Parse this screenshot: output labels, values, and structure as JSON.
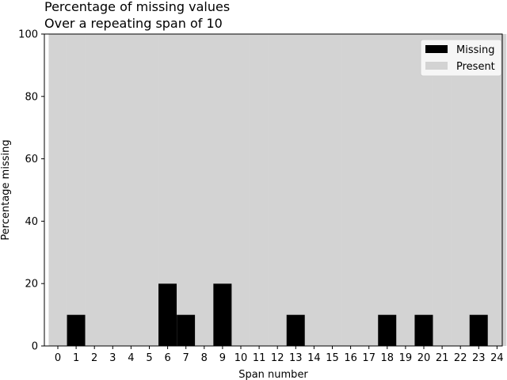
{
  "chart_data": {
    "type": "bar",
    "stacked": true,
    "title": "Percentage of missing values",
    "subtitle": "Over a repeating span of 10",
    "xlabel": "Span number",
    "ylabel": "Percentage missing",
    "ylim": [
      0,
      100
    ],
    "yticks": [
      0,
      20,
      40,
      60,
      80,
      100
    ],
    "categories": [
      "0",
      "1",
      "2",
      "3",
      "4",
      "5",
      "6",
      "7",
      "8",
      "9",
      "10",
      "11",
      "12",
      "13",
      "14",
      "15",
      "16",
      "17",
      "18",
      "19",
      "20",
      "21",
      "22",
      "23",
      "24"
    ],
    "series": [
      {
        "name": "Missing",
        "color": "#000000",
        "values": [
          0,
          10,
          0,
          0,
          0,
          0,
          20,
          10,
          0,
          20,
          0,
          0,
          0,
          10,
          0,
          0,
          0,
          0,
          10,
          0,
          10,
          0,
          0,
          10,
          0
        ]
      },
      {
        "name": "Present",
        "color": "#d3d3d3",
        "values": [
          100,
          90,
          100,
          100,
          100,
          100,
          80,
          90,
          100,
          80,
          100,
          100,
          100,
          90,
          100,
          100,
          100,
          100,
          90,
          100,
          90,
          100,
          100,
          90,
          100
        ]
      }
    ],
    "grid": false,
    "legend": {
      "position": "top-right"
    }
  }
}
